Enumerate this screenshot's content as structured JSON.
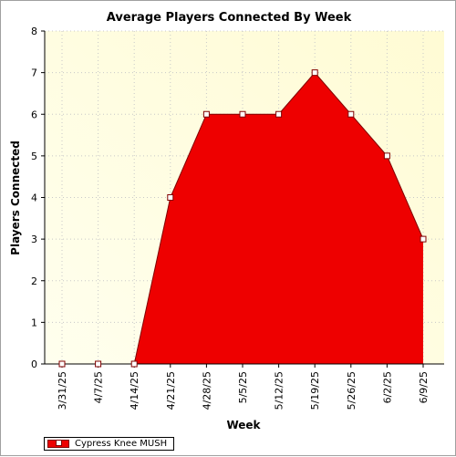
{
  "chart_data": {
    "type": "area",
    "title": "Average Players Connected By Week",
    "xlabel": "Week",
    "ylabel": "Players Connected",
    "categories": [
      "3/31/25",
      "4/7/25",
      "4/14/25",
      "4/21/25",
      "4/28/25",
      "5/5/25",
      "5/12/25",
      "5/19/25",
      "5/26/25",
      "6/2/25",
      "6/9/25"
    ],
    "series": [
      {
        "name": "Cypress Knee MUSH",
        "values": [
          0,
          0,
          0,
          4,
          6,
          6,
          6,
          7,
          6,
          5,
          3
        ]
      }
    ],
    "ylim": [
      0,
      8
    ],
    "yticks": [
      0,
      1,
      2,
      3,
      4,
      5,
      6,
      7,
      8
    ],
    "grid": true,
    "legend": "bottom-left",
    "colors": {
      "fill": "#ee0000",
      "line": "#800000",
      "marker": "#ffffff",
      "plot_bg_start": "#ffffee",
      "plot_bg_end": "#fffbd4"
    }
  }
}
